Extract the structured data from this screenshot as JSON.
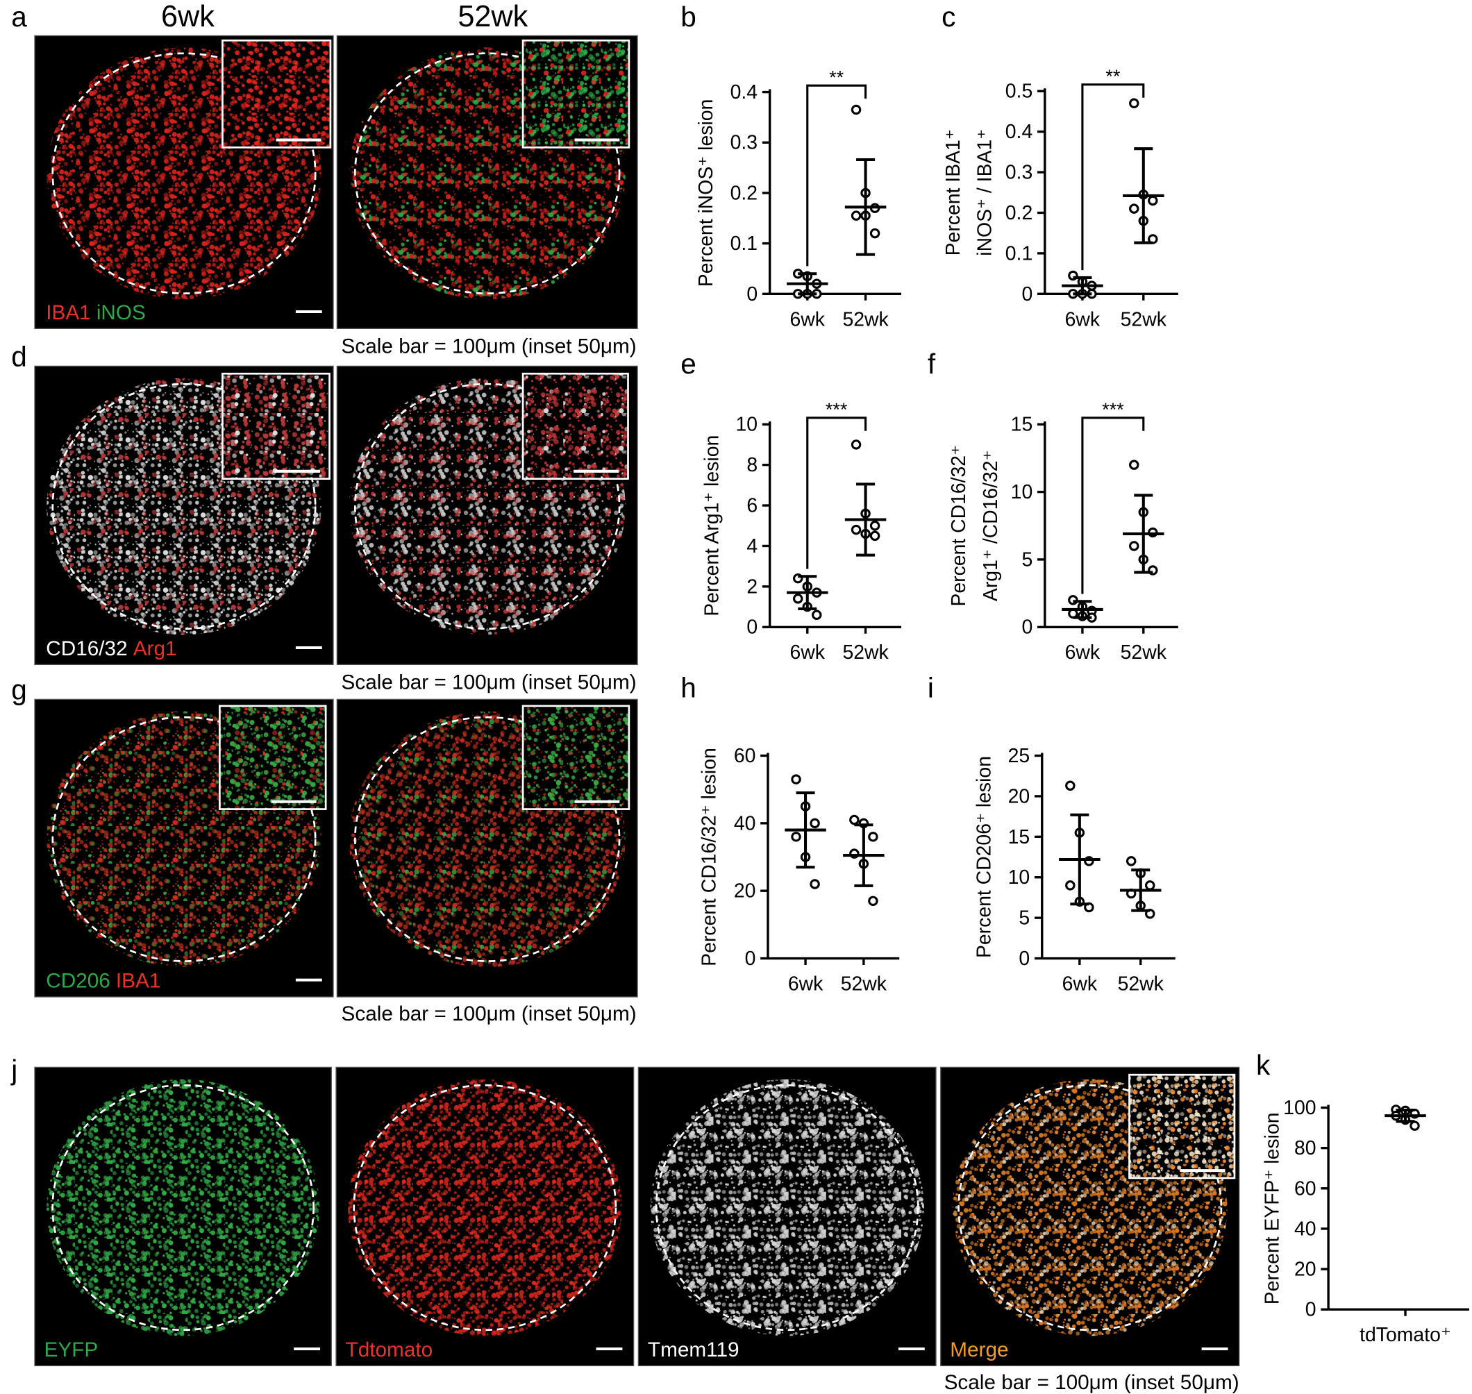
{
  "figure": {
    "column_headers": [
      "6wk",
      "52wk"
    ],
    "image_rows": [
      {
        "label": "a",
        "channels": [
          {
            "text": "IBA1",
            "color": "#e8332a"
          },
          {
            "text": "iNOS",
            "color": "#2ea84a"
          }
        ],
        "scale_bar": "Scale bar = 100μm (inset 50μm)"
      },
      {
        "label": "d",
        "channels": [
          {
            "text": "CD16/32",
            "color": "#ffffff"
          },
          {
            "text": "Arg1",
            "color": "#e8332a"
          }
        ],
        "scale_bar": "Scale bar = 100μm (inset 50μm)"
      },
      {
        "label": "g",
        "channels": [
          {
            "text": "CD206",
            "color": "#2ea84a"
          },
          {
            "text": "IBA1",
            "color": "#e8332a"
          }
        ],
        "scale_bar": "Scale bar = 100μm (inset 50μm)"
      },
      {
        "label": "j",
        "channels": [
          {
            "text": "EYFP",
            "color": "#2ea84a"
          },
          {
            "text": "Tdtomato",
            "color": "#e8332a"
          },
          {
            "text": "Tmem119",
            "color": "#ffffff"
          },
          {
            "text": "Merge",
            "color": "#f39a2b"
          }
        ],
        "scale_bar": "Scale bar = 100μm (inset 50μm)"
      }
    ]
  },
  "chart_data": [
    {
      "type": "scatter",
      "label": "b",
      "ylabel": [
        "Percent iNOS⁺ lesion"
      ],
      "categories": [
        "6wk",
        "52wk"
      ],
      "groups": [
        {
          "values": [
            0.04,
            0.035,
            0.02,
            0.0,
            0.0,
            0.0
          ],
          "mean": 0.02,
          "sd": 0.02
        },
        {
          "values": [
            0.365,
            0.2,
            0.17,
            0.155,
            0.155,
            0.12
          ],
          "mean": 0.172,
          "sd": 0.094
        }
      ],
      "significance": "**",
      "ylim": [
        0,
        0.4
      ],
      "yticks": [
        0,
        0.1,
        0.2,
        0.3,
        0.4
      ]
    },
    {
      "type": "scatter",
      "label": "c",
      "ylabel": [
        "Percent IBA1⁺",
        "iNOS⁺ / IBA1⁺"
      ],
      "categories": [
        "6wk",
        "52wk"
      ],
      "groups": [
        {
          "values": [
            0.045,
            0.03,
            0.02,
            0.0,
            0.0,
            0.0
          ],
          "mean": 0.02,
          "sd": 0.02
        },
        {
          "values": [
            0.47,
            0.245,
            0.23,
            0.21,
            0.18,
            0.135
          ],
          "mean": 0.242,
          "sd": 0.116
        }
      ],
      "significance": "**",
      "ylim": [
        0,
        0.5
      ],
      "yticks": [
        0,
        0.1,
        0.2,
        0.3,
        0.4,
        0.5
      ]
    },
    {
      "type": "scatter",
      "label": "e",
      "ylabel": [
        "Percent Arg1⁺ lesion"
      ],
      "categories": [
        "6wk",
        "52wk"
      ],
      "groups": [
        {
          "values": [
            2.4,
            2.0,
            1.7,
            1.4,
            1.0,
            0.6
          ],
          "mean": 1.7,
          "sd": 0.8
        },
        {
          "values": [
            9.0,
            5.6,
            5.0,
            4.8,
            4.6,
            4.5
          ],
          "mean": 5.3,
          "sd": 1.75
        }
      ],
      "significance": "***",
      "ylim": [
        0,
        10
      ],
      "yticks": [
        0,
        2,
        4,
        6,
        8,
        10
      ]
    },
    {
      "type": "scatter",
      "label": "f",
      "ylabel": [
        "Percent CD16/32⁺",
        "Arg1⁺ /CD16/32⁺"
      ],
      "categories": [
        "6wk",
        "52wk"
      ],
      "groups": [
        {
          "values": [
            2.0,
            1.5,
            1.2,
            1.0,
            0.8,
            0.7
          ],
          "mean": 1.3,
          "sd": 0.6
        },
        {
          "values": [
            12.0,
            8.5,
            7.0,
            6.0,
            5.0,
            4.2
          ],
          "mean": 6.9,
          "sd": 2.85
        }
      ],
      "significance": "***",
      "ylim": [
        0,
        15
      ],
      "yticks": [
        0,
        5,
        10,
        15
      ]
    },
    {
      "type": "scatter",
      "label": "h",
      "ylabel": [
        "Percent CD16/32⁺ lesion"
      ],
      "categories": [
        "6wk",
        "52wk"
      ],
      "groups": [
        {
          "values": [
            53,
            45,
            40,
            36,
            30,
            22
          ],
          "mean": 38,
          "sd": 11
        },
        {
          "values": [
            41,
            40,
            36,
            31,
            28,
            17
          ],
          "mean": 30.5,
          "sd": 9
        }
      ],
      "ylim": [
        0,
        60
      ],
      "yticks": [
        0,
        20,
        40,
        60
      ]
    },
    {
      "type": "scatter",
      "label": "i",
      "ylabel": [
        "Percent CD206⁺ lesion"
      ],
      "categories": [
        "6wk",
        "52wk"
      ],
      "groups": [
        {
          "values": [
            21.3,
            15.5,
            12,
            9,
            7,
            6.3
          ],
          "mean": 12.2,
          "sd": 5.5
        },
        {
          "values": [
            12,
            10.5,
            9,
            8,
            6.5,
            5.5
          ],
          "mean": 8.4,
          "sd": 2.5
        }
      ],
      "ylim": [
        0,
        25
      ],
      "yticks": [
        0,
        5,
        10,
        15,
        20,
        25
      ]
    },
    {
      "type": "scatter",
      "label": "k",
      "ylabel": [
        "Percent EYFP⁺ lesion"
      ],
      "categories": [
        "tdTomato⁺"
      ],
      "groups": [
        {
          "values": [
            99,
            98.5,
            97,
            96,
            94,
            91
          ],
          "mean": 96,
          "sd": 2.8
        }
      ],
      "ylim": [
        0,
        100
      ],
      "yticks": [
        0,
        20,
        40,
        60,
        80,
        100
      ]
    }
  ]
}
